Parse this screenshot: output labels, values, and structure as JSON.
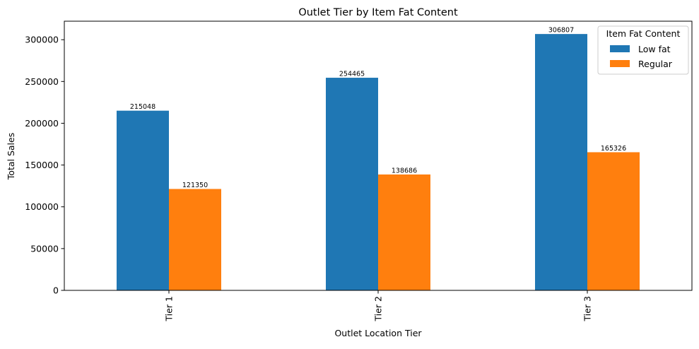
{
  "chart_data": {
    "type": "bar",
    "title": "Outlet Tier by Item Fat Content",
    "xlabel": "Outlet Location Tier",
    "ylabel": "Total Sales",
    "categories": [
      "Tier 1",
      "Tier 2",
      "Tier 3"
    ],
    "series": [
      {
        "name": "Low fat",
        "values": [
          215048,
          254465,
          306807
        ],
        "color": "#1f77b4"
      },
      {
        "name": "Regular",
        "values": [
          121350,
          138686,
          165326
        ],
        "color": "#ff7f0e"
      }
    ],
    "ylim": [
      0,
      322147
    ],
    "yticks": [
      0,
      50000,
      100000,
      150000,
      200000,
      250000,
      300000
    ],
    "legend": {
      "title": "Item Fat Content",
      "position": "top-right"
    },
    "grid": false,
    "data_labels": true,
    "xtick_rotation": "vertical"
  }
}
